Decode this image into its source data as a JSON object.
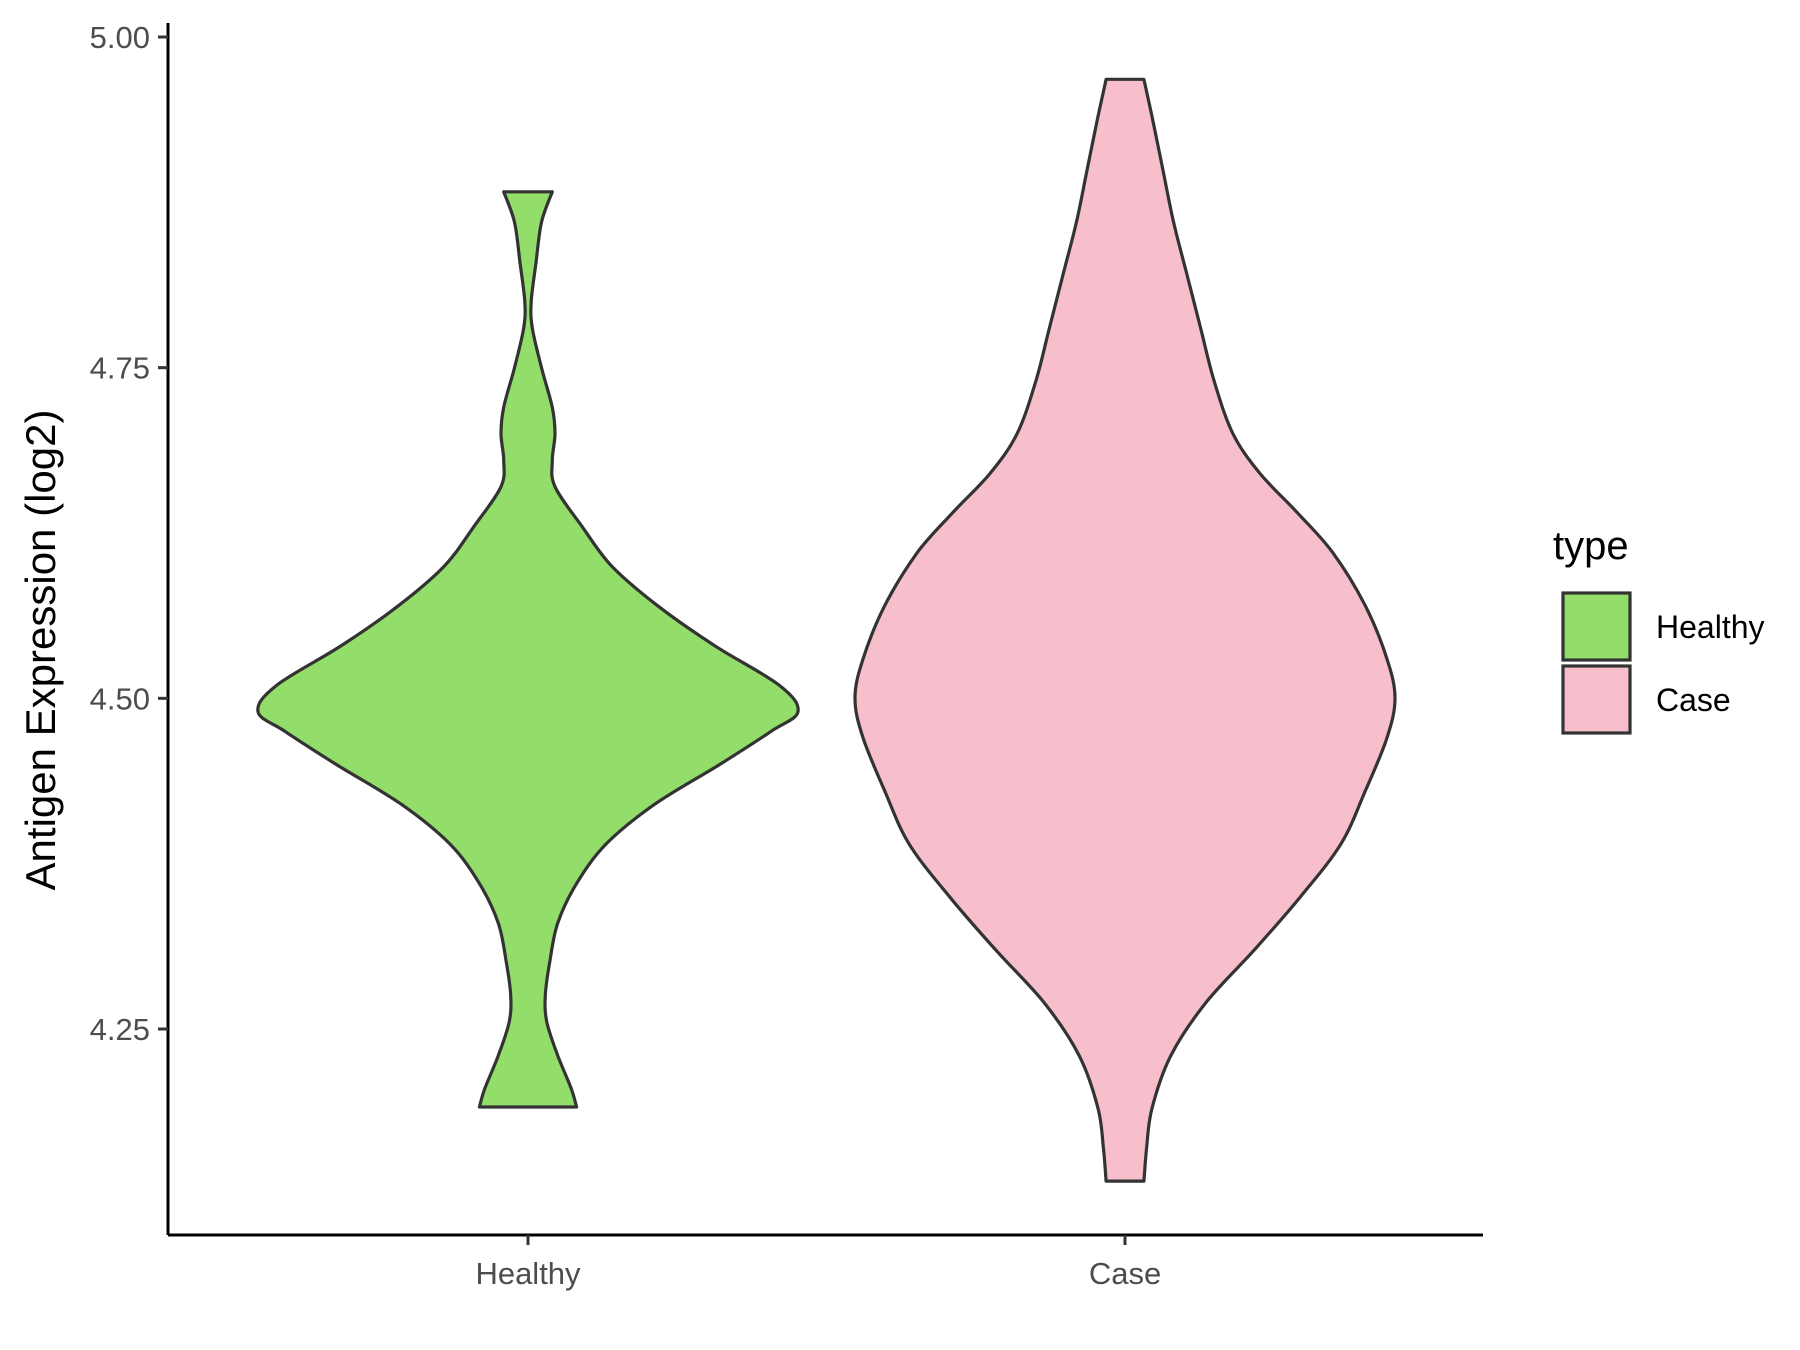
{
  "chart_data": {
    "type": "violin",
    "title": "",
    "xlabel": "",
    "ylabel": "Antigen Expression (log2)",
    "ylim": [
      4.095,
      5.01
    ],
    "yticks": [
      4.25,
      4.5,
      4.75,
      5.0
    ],
    "ytick_labels": [
      "4.25",
      "4.50",
      "4.75",
      "5.00"
    ],
    "categories": [
      "Healthy",
      "Case"
    ],
    "grid": false,
    "legend": {
      "title": "type",
      "position": "right",
      "entries": [
        {
          "label": "Healthy",
          "color": "#93dd6b"
        },
        {
          "label": "Case",
          "color": "#f7bfcb"
        }
      ]
    },
    "series": [
      {
        "category": "Healthy",
        "color": "#93dd6b",
        "min": 4.191,
        "max": 4.883,
        "density_profile": [
          [
            4.191,
            0.18
          ],
          [
            4.205,
            0.16
          ],
          [
            4.23,
            0.11
          ],
          [
            4.255,
            0.07
          ],
          [
            4.275,
            0.064
          ],
          [
            4.3,
            0.08
          ],
          [
            4.33,
            0.11
          ],
          [
            4.36,
            0.18
          ],
          [
            4.39,
            0.29
          ],
          [
            4.42,
            0.47
          ],
          [
            4.45,
            0.71
          ],
          [
            4.475,
            0.9
          ],
          [
            4.49,
            1.0
          ],
          [
            4.51,
            0.93
          ],
          [
            4.54,
            0.69
          ],
          [
            4.57,
            0.48
          ],
          [
            4.6,
            0.31
          ],
          [
            4.63,
            0.2
          ],
          [
            4.66,
            0.1
          ],
          [
            4.68,
            0.09
          ],
          [
            4.7,
            0.1
          ],
          [
            4.72,
            0.09
          ],
          [
            4.75,
            0.05
          ],
          [
            4.78,
            0.016
          ],
          [
            4.8,
            0.012
          ],
          [
            4.83,
            0.03
          ],
          [
            4.86,
            0.05
          ],
          [
            4.883,
            0.09
          ]
        ]
      },
      {
        "category": "Case",
        "color": "#f7bfcb",
        "min": 4.135,
        "max": 4.968,
        "density_profile": [
          [
            4.135,
            0.07
          ],
          [
            4.16,
            0.08
          ],
          [
            4.19,
            0.1
          ],
          [
            4.23,
            0.17
          ],
          [
            4.27,
            0.3
          ],
          [
            4.31,
            0.48
          ],
          [
            4.35,
            0.65
          ],
          [
            4.39,
            0.8
          ],
          [
            4.43,
            0.89
          ],
          [
            4.47,
            0.97
          ],
          [
            4.5,
            1.0
          ],
          [
            4.53,
            0.97
          ],
          [
            4.57,
            0.89
          ],
          [
            4.61,
            0.77
          ],
          [
            4.64,
            0.64
          ],
          [
            4.67,
            0.5
          ],
          [
            4.7,
            0.4
          ],
          [
            4.74,
            0.33
          ],
          [
            4.78,
            0.28
          ],
          [
            4.82,
            0.23
          ],
          [
            4.86,
            0.18
          ],
          [
            4.9,
            0.14
          ],
          [
            4.94,
            0.1
          ],
          [
            4.968,
            0.07
          ]
        ]
      }
    ]
  }
}
